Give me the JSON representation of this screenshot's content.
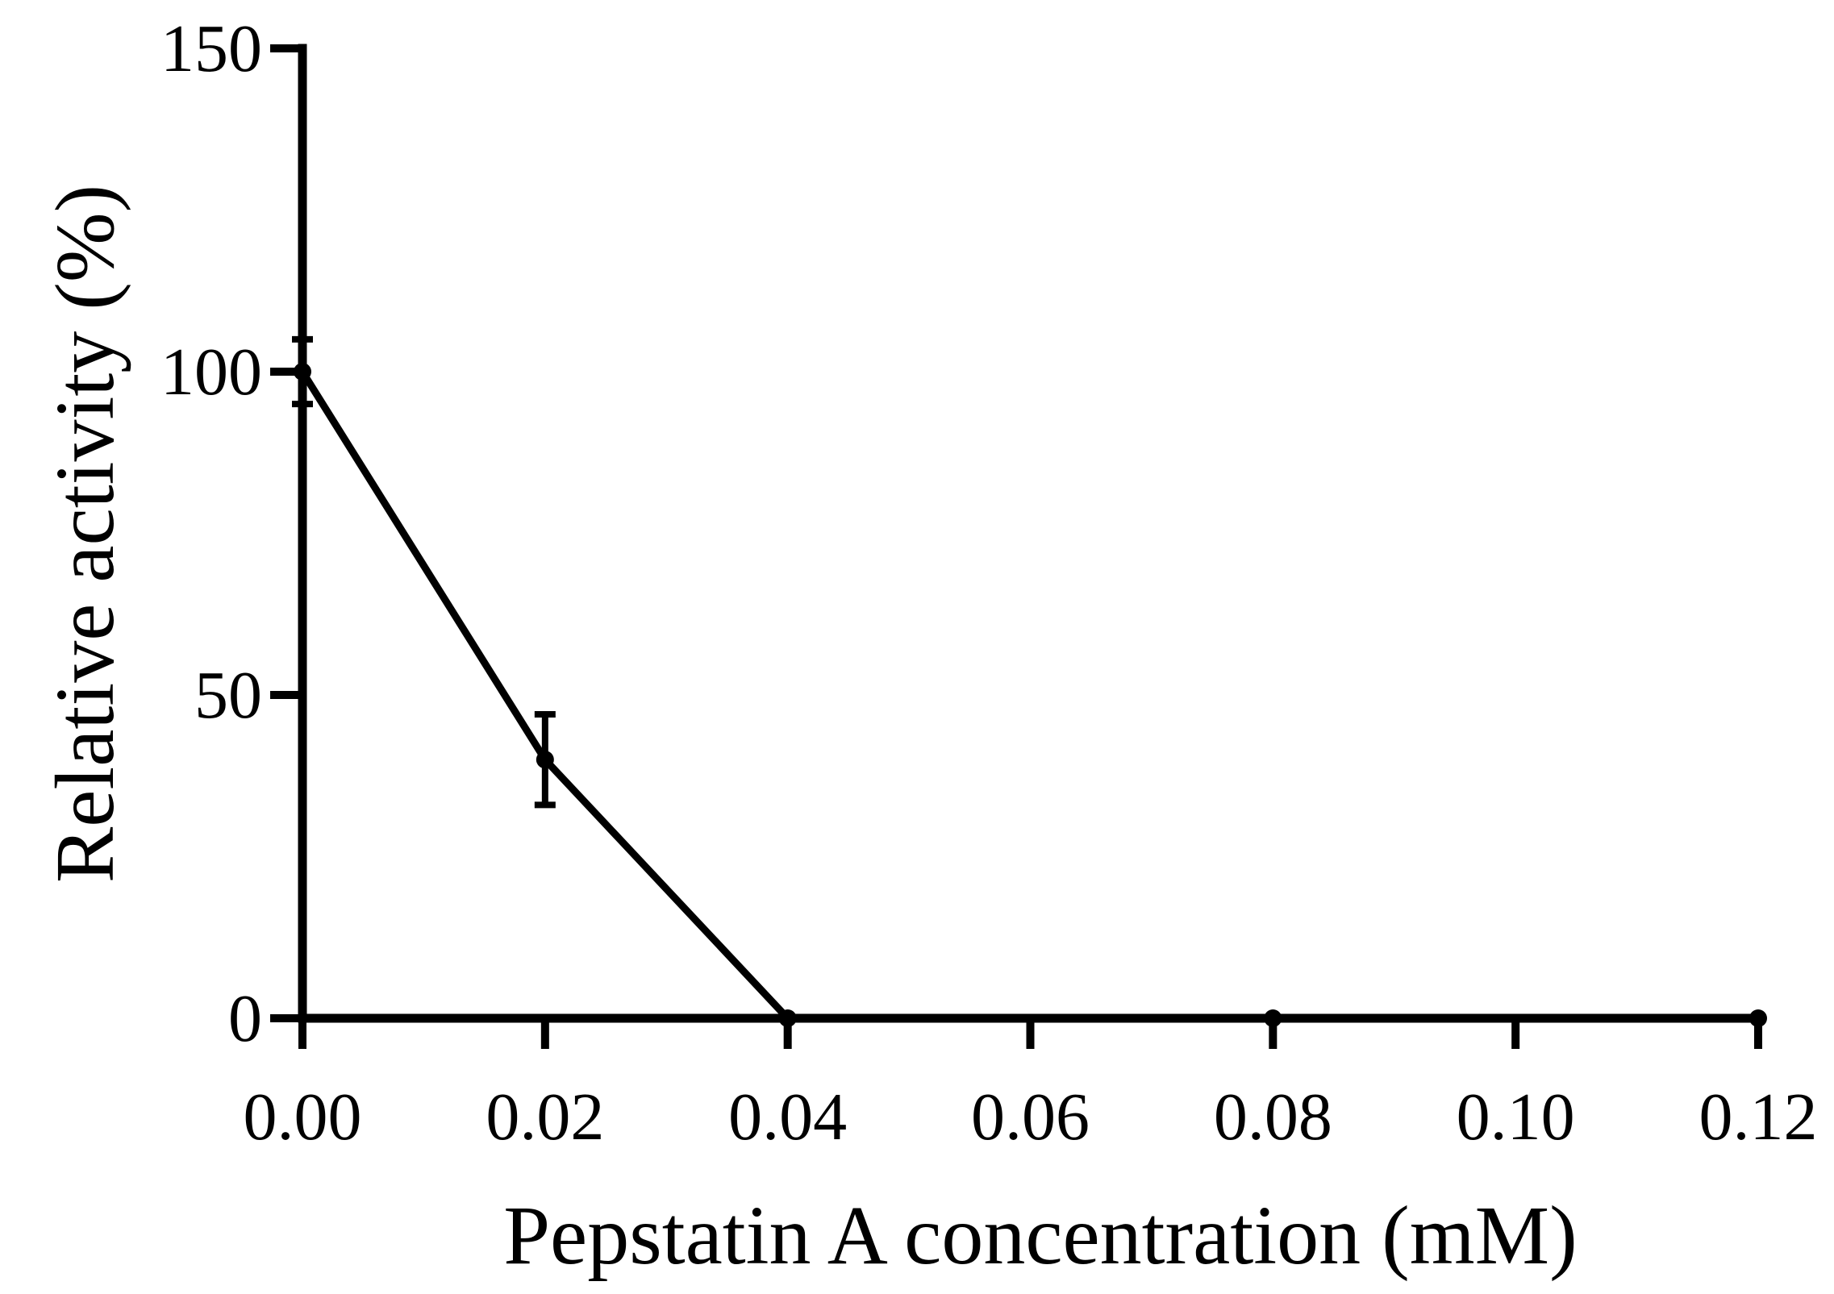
{
  "chart_data": {
    "type": "line",
    "title": "",
    "xlabel": "Pepstatin A concentration (mM)",
    "ylabel": "Relative activity (%)",
    "xlim": [
      0,
      0.12
    ],
    "ylim": [
      0,
      150
    ],
    "xticks": [
      0.0,
      0.02,
      0.04,
      0.06,
      0.08,
      0.1,
      0.12
    ],
    "xtick_labels": [
      "0.00",
      "0.02",
      "0.04",
      "0.06",
      "0.08",
      "0.10",
      "0.12"
    ],
    "yticks": [
      0,
      50,
      100,
      150
    ],
    "ytick_labels": [
      "0",
      "50",
      "100",
      "150"
    ],
    "grid": false,
    "legend": "none",
    "series": [
      {
        "color": "#000000",
        "x": [
          0.0,
          0.02,
          0.04,
          0.08,
          0.12
        ],
        "y": [
          100,
          40,
          0,
          0,
          0
        ],
        "error": [
          5,
          7,
          0,
          0,
          0
        ]
      }
    ]
  }
}
